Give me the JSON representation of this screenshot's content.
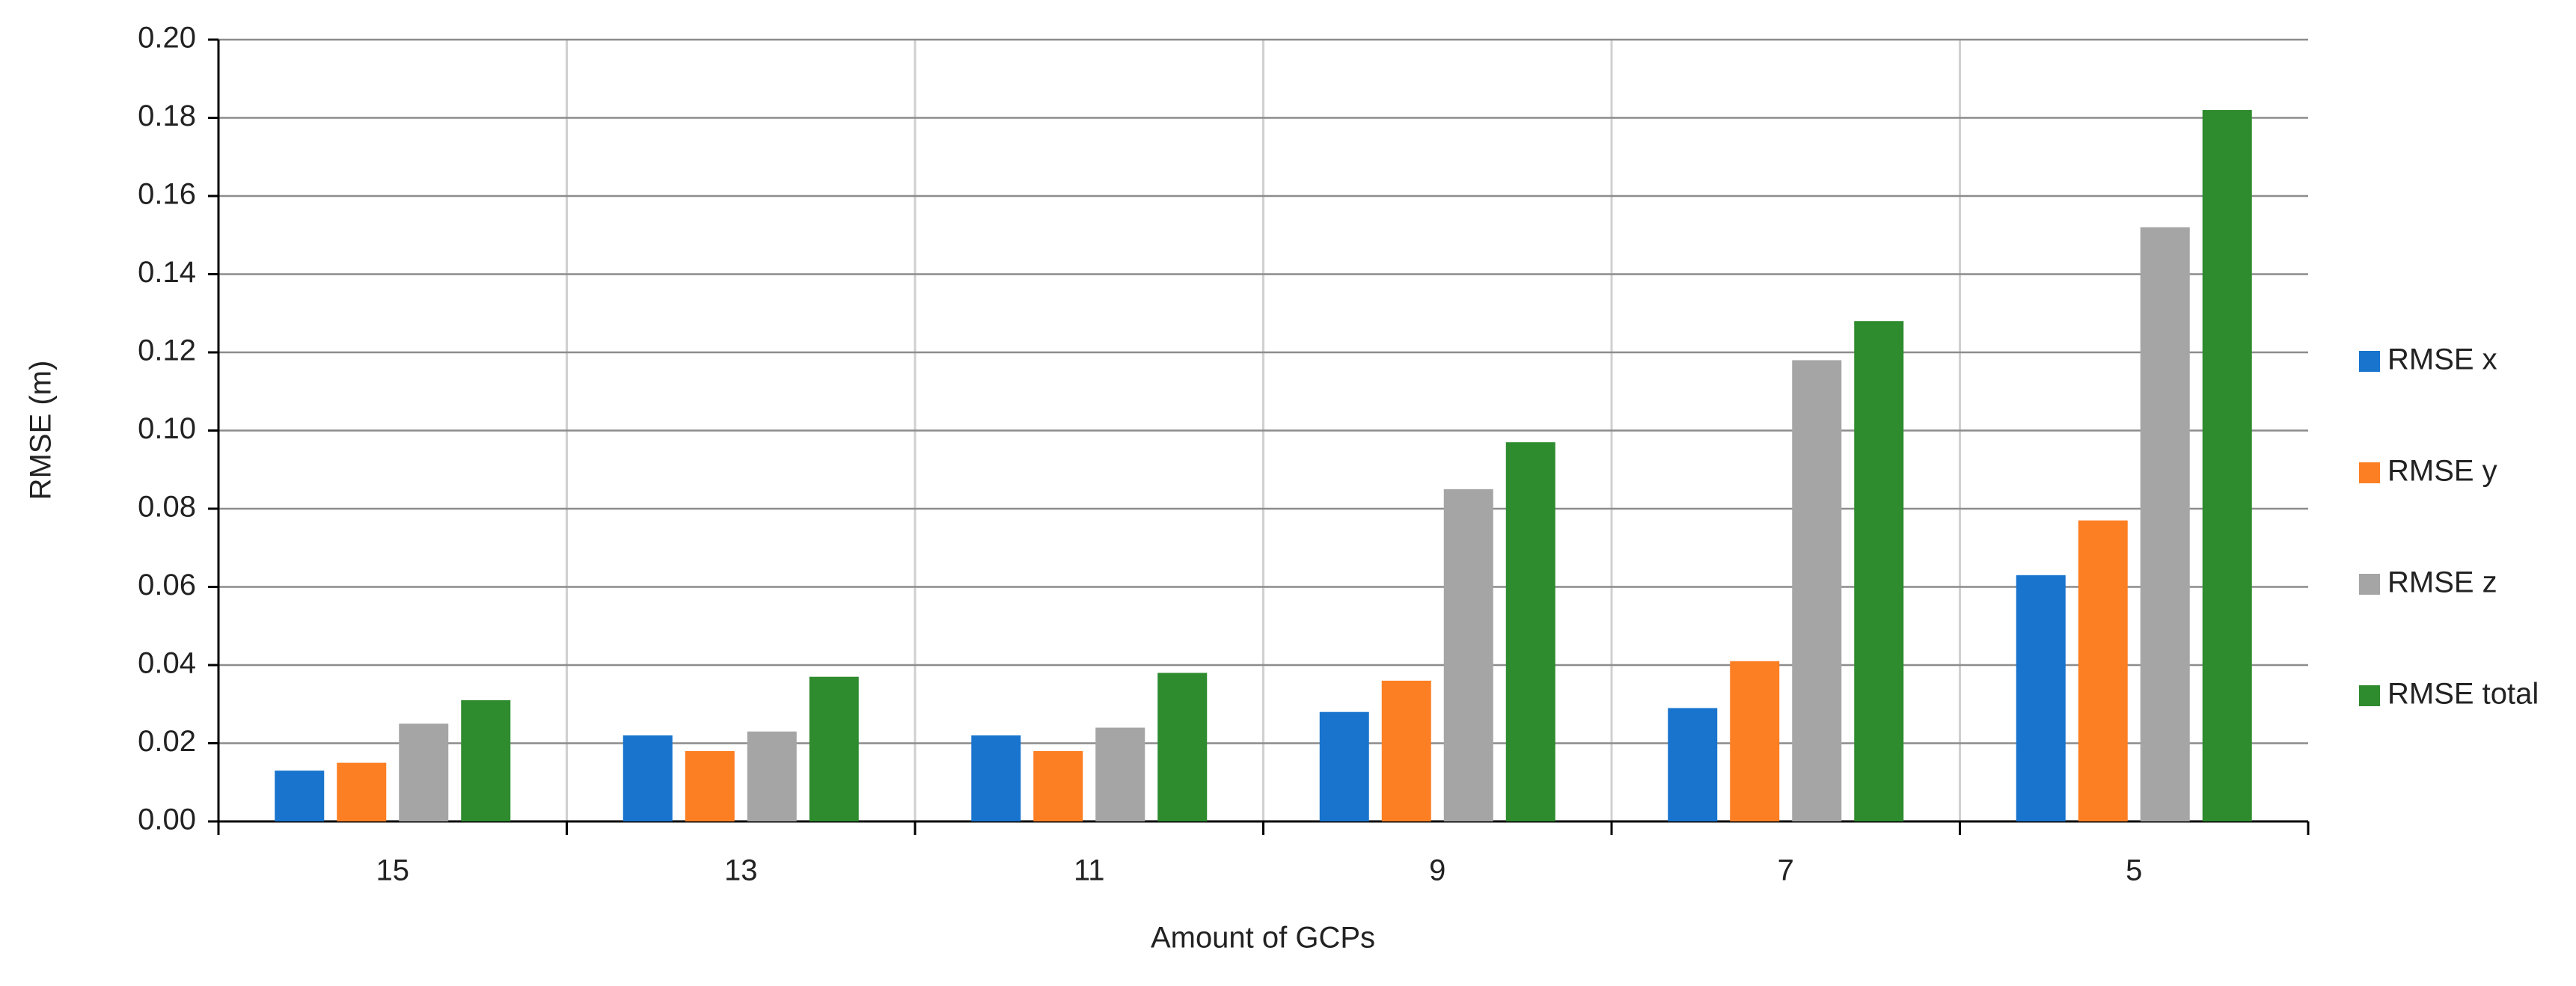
{
  "chart_data": {
    "type": "bar",
    "x_label": "Amount of GCPs",
    "y_label": "RMSE (m)",
    "categories": [
      "15",
      "13",
      "11",
      "9",
      "7",
      "5"
    ],
    "series": [
      {
        "name": "RMSE x",
        "color": "#1874cd",
        "values": [
          0.013,
          0.022,
          0.022,
          0.028,
          0.029,
          0.063
        ]
      },
      {
        "name": "RMSE y",
        "color": "#fd7f23",
        "values": [
          0.015,
          0.018,
          0.018,
          0.036,
          0.041,
          0.077
        ]
      },
      {
        "name": "RMSE z",
        "color": "#a5a5a5",
        "values": [
          0.025,
          0.023,
          0.024,
          0.085,
          0.118,
          0.152
        ]
      },
      {
        "name": "RMSE total",
        "color": "#2e8b2e",
        "values": [
          0.031,
          0.037,
          0.038,
          0.097,
          0.128,
          0.182
        ]
      }
    ],
    "ylim": [
      0,
      0.2
    ],
    "yticks": [
      {
        "value": 0,
        "label": "0.00"
      },
      0.02,
      0.04,
      0.06,
      0.08,
      {
        "value": 0.1,
        "label": "0.10"
      },
      0.12,
      0.14,
      0.16,
      0.18,
      {
        "value": 0.2,
        "label": "0.20"
      }
    ],
    "grid": true,
    "legend": "right"
  }
}
